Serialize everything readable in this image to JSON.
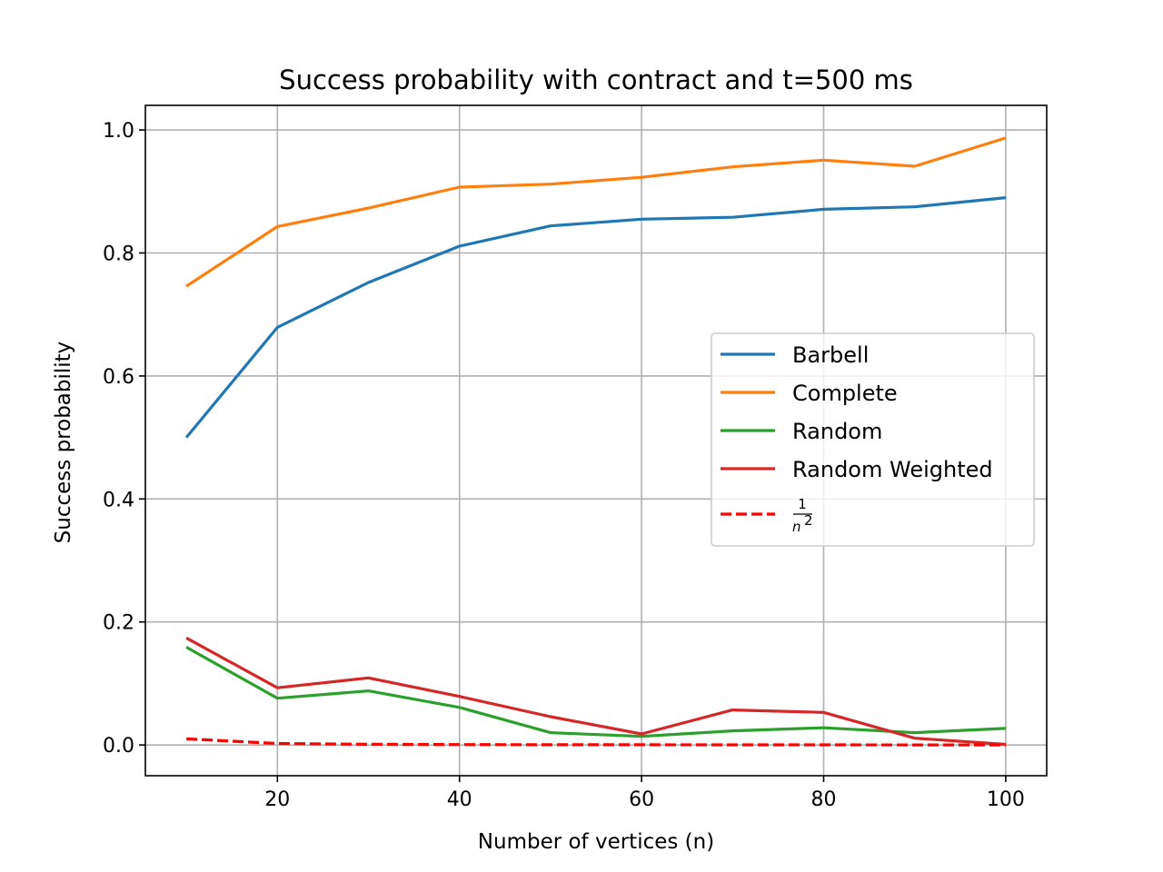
{
  "chart_data": {
    "type": "line",
    "title": "Success probability with contract and t=500 ms",
    "xlabel": "Number of vertices (n)",
    "ylabel": "Success probability",
    "xlim": [
      5.5,
      104.5
    ],
    "ylim": [
      -0.05,
      1.04
    ],
    "xticks": [
      20,
      40,
      60,
      80,
      100
    ],
    "yticks": [
      0.0,
      0.2,
      0.4,
      0.6,
      0.8,
      1.0
    ],
    "xtick_labels": [
      "20",
      "40",
      "60",
      "80",
      "100"
    ],
    "ytick_labels": [
      "0.0",
      "0.2",
      "0.4",
      "0.6",
      "0.8",
      "1.0"
    ],
    "grid": true,
    "legend_position": "center-right",
    "x": [
      10,
      20,
      30,
      40,
      50,
      60,
      70,
      80,
      90,
      100
    ],
    "series": [
      {
        "name": "Barbell",
        "color": "#1f77b4",
        "dash": "solid",
        "values": [
          0.5,
          0.679,
          0.752,
          0.811,
          0.844,
          0.855,
          0.858,
          0.871,
          0.875,
          0.89
        ]
      },
      {
        "name": "Complete",
        "color": "#ff7f0e",
        "dash": "solid",
        "values": [
          0.746,
          0.843,
          0.873,
          0.907,
          0.912,
          0.923,
          0.94,
          0.951,
          0.941,
          0.987
        ]
      },
      {
        "name": "Random",
        "color": "#2ca02c",
        "dash": "solid",
        "values": [
          0.159,
          0.076,
          0.088,
          0.061,
          0.02,
          0.014,
          0.023,
          0.028,
          0.02,
          0.027
        ]
      },
      {
        "name": "Random Weighted",
        "color": "#d62728",
        "dash": "solid",
        "values": [
          0.174,
          0.093,
          0.109,
          0.079,
          0.046,
          0.018,
          0.057,
          0.053,
          0.011,
          0.001
        ]
      },
      {
        "name": "1/n²",
        "color": "#ff0000",
        "dash": "dashed",
        "values": [
          0.01,
          0.0025,
          0.0011,
          0.0006,
          0.0004,
          0.0003,
          0.0002,
          0.00016,
          0.00012,
          0.0001
        ]
      }
    ],
    "legend_fraction": {
      "numerator": "1",
      "denominator_base": "n",
      "denominator_exp": "2"
    }
  }
}
